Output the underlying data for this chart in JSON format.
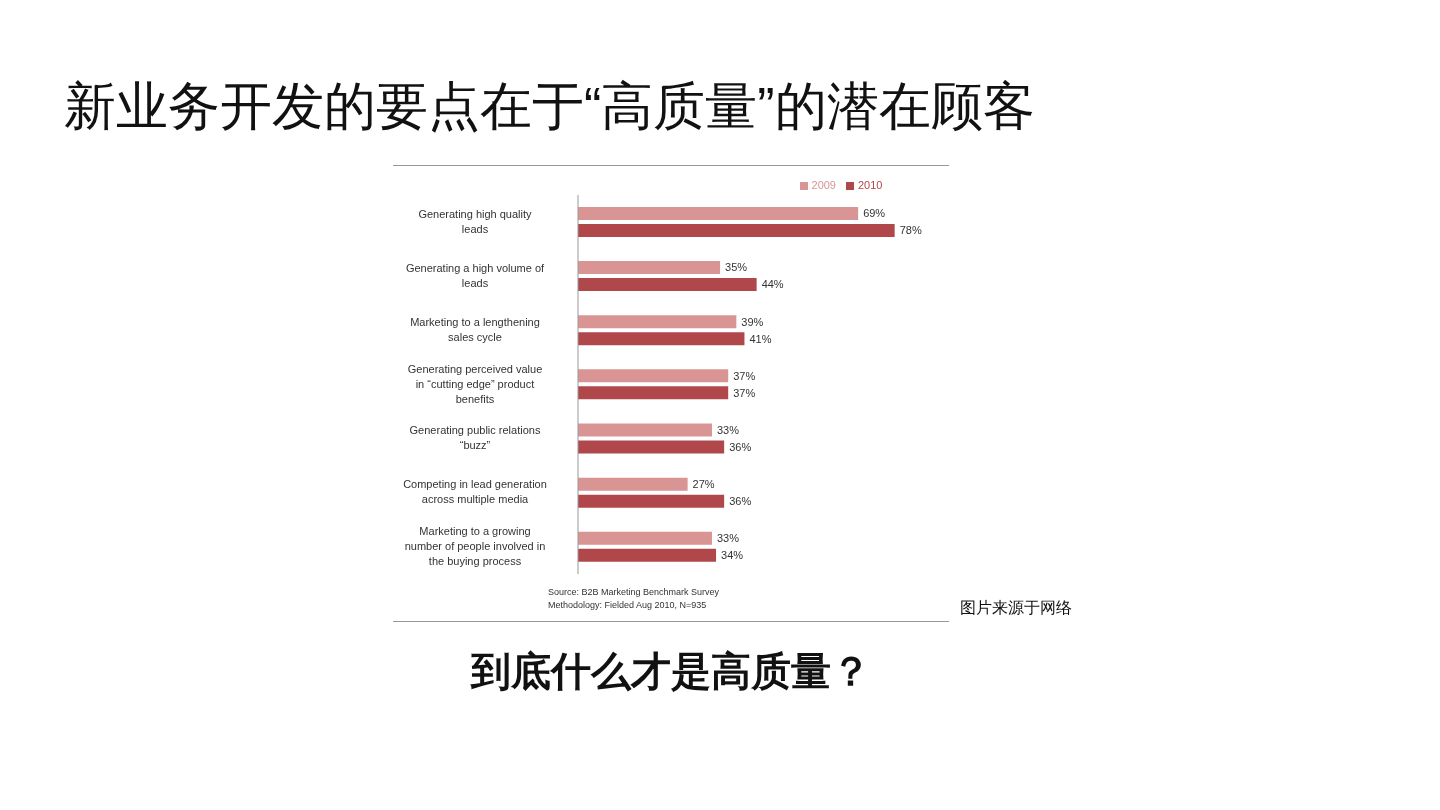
{
  "chart_data": {
    "type": "bar",
    "orientation": "horizontal",
    "title": "新业务开发的要点在于“高质量”的潜在顾客",
    "categories": [
      "Generating high quality leads",
      "Generating a high volume of leads",
      "Marketing to a lengthening sales cycle",
      "Generating perceived value in “cutting edge” product benefits",
      "Generating public relations “buzz”",
      "Competing in lead generation across multiple media",
      "Marketing to a growing number of people involved in the buying process"
    ],
    "series": [
      {
        "name": "2009",
        "color": "#d99594",
        "values": [
          69,
          35,
          39,
          37,
          33,
          27,
          33
        ],
        "value_labels": [
          "69%",
          "35%",
          "39%",
          "37%",
          "33%",
          "27%",
          "33%"
        ]
      },
      {
        "name": "2010",
        "color": "#b0474a",
        "values": [
          78,
          44,
          41,
          37,
          36,
          36,
          34
        ],
        "value_labels": [
          "78%",
          "44%",
          "41%",
          "37%",
          "36%",
          "36%",
          "34%"
        ]
      }
    ],
    "legend": "top",
    "grid": false,
    "annotations": [
      "Source: B2B Marketing Benchmark Survey",
      "Methodology: Fielded Aug 2010, N=935",
      "图片来源于网络",
      "到底什么才是高质量？"
    ]
  }
}
